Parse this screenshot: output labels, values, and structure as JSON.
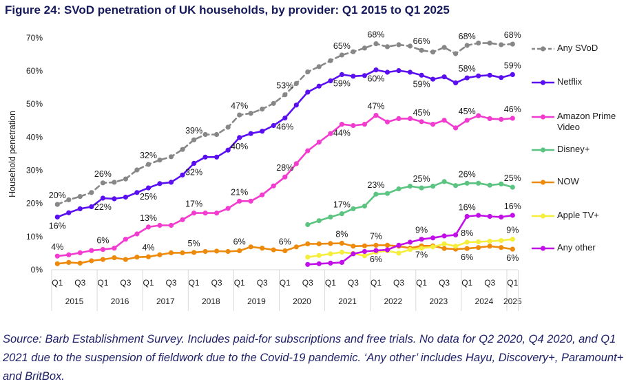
{
  "figure": {
    "title": "Figure 24: SVoD penetration of UK households, by provider: Q1 2015 to Q1 2025",
    "source": "Source: Barb Establishment Survey. Includes paid-for subscriptions and free trials. No data for Q2 2020, Q4 2020, and Q1 2021 due to the suspension of fieldwork due to the Covid-19 pandemic. ‘Any other’ includes Hayu, Discovery+, Paramount+ and BritBox."
  },
  "chart_data": {
    "type": "line",
    "title": "Figure 24: SVoD penetration of UK households, by provider: Q1 2015 to Q1 2025",
    "xlabel": "",
    "ylabel": "Household penetration",
    "ylim": [
      0,
      70
    ],
    "grid": false,
    "legend_position": "right",
    "y_ticks": [
      {
        "value": 0,
        "label": "0%"
      },
      {
        "value": 10,
        "label": "10%"
      },
      {
        "value": 20,
        "label": "20%"
      },
      {
        "value": 30,
        "label": "30%"
      },
      {
        "value": 40,
        "label": "40%"
      },
      {
        "value": 50,
        "label": "50%"
      },
      {
        "value": 60,
        "label": "60%"
      },
      {
        "value": 70,
        "label": "70%"
      }
    ],
    "categories": [
      "Q1 2015",
      "Q2 2015",
      "Q3 2015",
      "Q4 2015",
      "Q1 2016",
      "Q2 2016",
      "Q3 2016",
      "Q4 2016",
      "Q1 2017",
      "Q2 2017",
      "Q3 2017",
      "Q4 2017",
      "Q1 2018",
      "Q2 2018",
      "Q3 2018",
      "Q4 2018",
      "Q1 2019",
      "Q2 2019",
      "Q3 2019",
      "Q4 2019",
      "Q1 2020",
      "Q2 2020",
      "Q3 2020",
      "Q4 2020",
      "Q1 2021",
      "Q2 2021",
      "Q3 2021",
      "Q4 2021",
      "Q1 2022",
      "Q2 2022",
      "Q3 2022",
      "Q4 2022",
      "Q1 2023",
      "Q2 2023",
      "Q3 2023",
      "Q4 2023",
      "Q1 2024",
      "Q2 2024",
      "Q3 2024",
      "Q4 2024",
      "Q1 2025"
    ],
    "x_tick_labels": [
      {
        "index": 0,
        "label": "Q1"
      },
      {
        "index": 2,
        "label": "Q3"
      },
      {
        "index": 4,
        "label": "Q1"
      },
      {
        "index": 6,
        "label": "Q3"
      },
      {
        "index": 8,
        "label": "Q1"
      },
      {
        "index": 10,
        "label": "Q3"
      },
      {
        "index": 12,
        "label": "Q1"
      },
      {
        "index": 14,
        "label": "Q3"
      },
      {
        "index": 16,
        "label": "Q1"
      },
      {
        "index": 18,
        "label": "Q3"
      },
      {
        "index": 20,
        "label": "Q1"
      },
      {
        "index": 22,
        "label": "Q3"
      },
      {
        "index": 24,
        "label": "Q1"
      },
      {
        "index": 26,
        "label": "Q3"
      },
      {
        "index": 28,
        "label": "Q1"
      },
      {
        "index": 30,
        "label": "Q3"
      },
      {
        "index": 32,
        "label": "Q1"
      },
      {
        "index": 34,
        "label": "Q3"
      },
      {
        "index": 36,
        "label": "Q1"
      },
      {
        "index": 38,
        "label": "Q3"
      },
      {
        "index": 40,
        "label": "Q1"
      }
    ],
    "year_groups": [
      {
        "label": "2015",
        "start": 0,
        "end": 4
      },
      {
        "label": "2016",
        "start": 4,
        "end": 8
      },
      {
        "label": "2017",
        "start": 8,
        "end": 12
      },
      {
        "label": "2018",
        "start": 12,
        "end": 16
      },
      {
        "label": "2019",
        "start": 16,
        "end": 20
      },
      {
        "label": "2020",
        "start": 20,
        "end": 24
      },
      {
        "label": "2021",
        "start": 24,
        "end": 28
      },
      {
        "label": "2022",
        "start": 28,
        "end": 32
      },
      {
        "label": "2023",
        "start": 32,
        "end": 36
      },
      {
        "label": "2024",
        "start": 36,
        "end": 40
      },
      {
        "label": "2025",
        "start": 40,
        "end": 41
      }
    ],
    "series": [
      {
        "name": "Any SVoD",
        "color": "#878787",
        "dashed": true,
        "values": [
          19.6,
          21.0,
          22.0,
          23.2,
          26.1,
          26.3,
          27.3,
          30.0,
          31.7,
          33.0,
          34.0,
          36.2,
          39.1,
          40.7,
          40.7,
          42.9,
          46.6,
          47.1,
          48.4,
          50.1,
          52.7,
          56.1,
          59.6,
          61.2,
          63.0,
          64.7,
          65.7,
          66.8,
          68.1,
          67.2,
          67.8,
          67.4,
          66.1,
          65.6,
          67.0,
          65.1,
          67.6,
          68.3,
          68.3,
          67.8,
          68.0
        ],
        "labels": [
          {
            "index": 0,
            "text": "20%",
            "position": "above"
          },
          {
            "index": 4,
            "text": "26%",
            "position": "above"
          },
          {
            "index": 8,
            "text": "32%",
            "position": "above"
          },
          {
            "index": 12,
            "text": "39%",
            "position": "above"
          },
          {
            "index": 16,
            "text": "47%",
            "position": "above"
          },
          {
            "index": 20,
            "text": "53%",
            "position": "above"
          },
          {
            "index": 25,
            "text": "65%",
            "position": "above"
          },
          {
            "index": 28,
            "text": "68%",
            "position": "above"
          },
          {
            "index": 32,
            "text": "66%",
            "position": "above"
          },
          {
            "index": 36,
            "text": "68%",
            "position": "above"
          },
          {
            "index": 40,
            "text": "68%",
            "position": "above"
          }
        ]
      },
      {
        "name": "Netflix",
        "color": "#5a0ff0",
        "dashed": false,
        "values": [
          15.8,
          17.1,
          18.3,
          18.9,
          21.5,
          21.3,
          21.8,
          23.2,
          24.6,
          25.9,
          26.3,
          28.5,
          32.0,
          33.9,
          33.9,
          36.0,
          39.8,
          41.0,
          41.7,
          43.4,
          45.7,
          49.6,
          53.5,
          55.3,
          56.9,
          58.8,
          58.3,
          58.5,
          60.2,
          59.5,
          60.0,
          59.5,
          58.6,
          57.4,
          58.1,
          56.3,
          57.8,
          58.4,
          58.6,
          57.9,
          58.8
        ],
        "labels": [
          {
            "index": 0,
            "text": "16%",
            "position": "below"
          },
          {
            "index": 4,
            "text": "22%",
            "position": "below"
          },
          {
            "index": 8,
            "text": "25%",
            "position": "below"
          },
          {
            "index": 12,
            "text": "32%",
            "position": "below"
          },
          {
            "index": 16,
            "text": "40%",
            "position": "below"
          },
          {
            "index": 20,
            "text": "46%",
            "position": "below"
          },
          {
            "index": 25,
            "text": "59%",
            "position": "below"
          },
          {
            "index": 28,
            "text": "60%",
            "position": "below"
          },
          {
            "index": 32,
            "text": "59%",
            "position": "below"
          },
          {
            "index": 36,
            "text": "58%",
            "position": "above"
          },
          {
            "index": 40,
            "text": "59%",
            "position": "above"
          }
        ]
      },
      {
        "name": "Amazon Prime Video",
        "color": "#f23ccf",
        "dashed": false,
        "values": [
          4.0,
          4.4,
          5.0,
          5.7,
          6.0,
          6.4,
          9.1,
          10.7,
          12.8,
          13.3,
          13.3,
          15.0,
          17.0,
          17.0,
          17.0,
          18.4,
          20.6,
          20.6,
          22.5,
          25.2,
          27.9,
          31.9,
          35.8,
          38.4,
          41.0,
          43.8,
          43.4,
          43.8,
          46.5,
          44.5,
          45.5,
          45.5,
          44.6,
          43.8,
          45.0,
          42.7,
          45.0,
          46.4,
          45.5,
          45.3,
          45.6
        ],
        "labels": [
          {
            "index": 0,
            "text": "4%",
            "position": "above"
          },
          {
            "index": 4,
            "text": "6%",
            "position": "above"
          },
          {
            "index": 8,
            "text": "13%",
            "position": "above"
          },
          {
            "index": 12,
            "text": "17%",
            "position": "above"
          },
          {
            "index": 16,
            "text": "21%",
            "position": "above"
          },
          {
            "index": 20,
            "text": "28%",
            "position": "above"
          },
          {
            "index": 25,
            "text": "44%",
            "position": "below"
          },
          {
            "index": 28,
            "text": "47%",
            "position": "above"
          },
          {
            "index": 32,
            "text": "45%",
            "position": "above"
          },
          {
            "index": 36,
            "text": "45%",
            "position": "above"
          },
          {
            "index": 40,
            "text": "46%",
            "position": "above"
          }
        ]
      },
      {
        "name": "Disney+",
        "color": "#5bc481",
        "dashed": false,
        "values": [
          null,
          null,
          null,
          null,
          null,
          null,
          null,
          null,
          null,
          null,
          null,
          null,
          null,
          null,
          null,
          null,
          null,
          null,
          null,
          null,
          null,
          null,
          13.5,
          14.7,
          15.8,
          16.8,
          18.3,
          19.1,
          22.7,
          22.9,
          24.3,
          25.1,
          24.6,
          25.1,
          26.5,
          25.3,
          26.0,
          26.0,
          25.4,
          25.8,
          24.8
        ],
        "labels": [
          {
            "index": 25,
            "text": "17%",
            "position": "above"
          },
          {
            "index": 28,
            "text": "23%",
            "position": "above"
          },
          {
            "index": 32,
            "text": "25%",
            "position": "above"
          },
          {
            "index": 36,
            "text": "26%",
            "position": "above"
          },
          {
            "index": 40,
            "text": "25%",
            "position": "above"
          }
        ]
      },
      {
        "name": "NOW",
        "color": "#ee8a0b",
        "dashed": false,
        "values": [
          1.7,
          2.1,
          1.9,
          2.6,
          3.0,
          3.5,
          3.0,
          3.7,
          3.8,
          4.4,
          5.0,
          5.0,
          5.1,
          5.4,
          5.5,
          5.4,
          5.6,
          6.8,
          6.4,
          5.9,
          5.6,
          6.8,
          7.7,
          7.7,
          7.8,
          7.9,
          7.0,
          7.1,
          7.3,
          7.3,
          7.0,
          6.4,
          7.1,
          7.1,
          6.3,
          6.1,
          6.3,
          6.6,
          7.0,
          6.6,
          6.1
        ],
        "labels": [
          {
            "index": 8,
            "text": "4%",
            "position": "above"
          },
          {
            "index": 12,
            "text": "5%",
            "position": "above"
          },
          {
            "index": 16,
            "text": "6%",
            "position": "above"
          },
          {
            "index": 20,
            "text": "6%",
            "position": "above"
          },
          {
            "index": 25,
            "text": "8%",
            "position": "above"
          },
          {
            "index": 28,
            "text": "7%",
            "position": "above"
          },
          {
            "index": 32,
            "text": "7%",
            "position": "below"
          },
          {
            "index": 36,
            "text": "6%",
            "position": "below"
          },
          {
            "index": 40,
            "text": "6%",
            "position": "below"
          }
        ]
      },
      {
        "name": "Apple TV+",
        "color": "#f5ee3d",
        "dashed": false,
        "values": [
          null,
          null,
          null,
          null,
          null,
          null,
          null,
          null,
          null,
          null,
          null,
          null,
          null,
          null,
          null,
          null,
          null,
          null,
          null,
          null,
          null,
          null,
          3.7,
          4.2,
          4.7,
          5.2,
          4.8,
          4.1,
          5.2,
          5.6,
          4.9,
          6.0,
          6.4,
          6.8,
          7.7,
          7.0,
          8.2,
          8.3,
          8.5,
          8.7,
          9.1
        ],
        "labels": [
          {
            "index": 36,
            "text": "8%",
            "position": "above"
          },
          {
            "index": 40,
            "text": "9%",
            "position": "above"
          }
        ]
      },
      {
        "name": "Any other",
        "color": "#c20ee8",
        "dashed": false,
        "values": [
          null,
          null,
          null,
          null,
          null,
          null,
          null,
          null,
          null,
          null,
          null,
          null,
          null,
          null,
          null,
          null,
          null,
          null,
          null,
          null,
          null,
          null,
          1.5,
          1.7,
          1.9,
          2.1,
          4.7,
          5.4,
          5.7,
          5.9,
          7.3,
          8.2,
          9.1,
          9.5,
          10.1,
          10.4,
          16.0,
          16.3,
          16.0,
          15.8,
          16.3
        ],
        "labels": [
          {
            "index": 28,
            "text": "6%",
            "position": "below"
          },
          {
            "index": 32,
            "text": "9%",
            "position": "above"
          },
          {
            "index": 36,
            "text": "16%",
            "position": "above"
          },
          {
            "index": 40,
            "text": "16%",
            "position": "above"
          }
        ]
      }
    ]
  }
}
